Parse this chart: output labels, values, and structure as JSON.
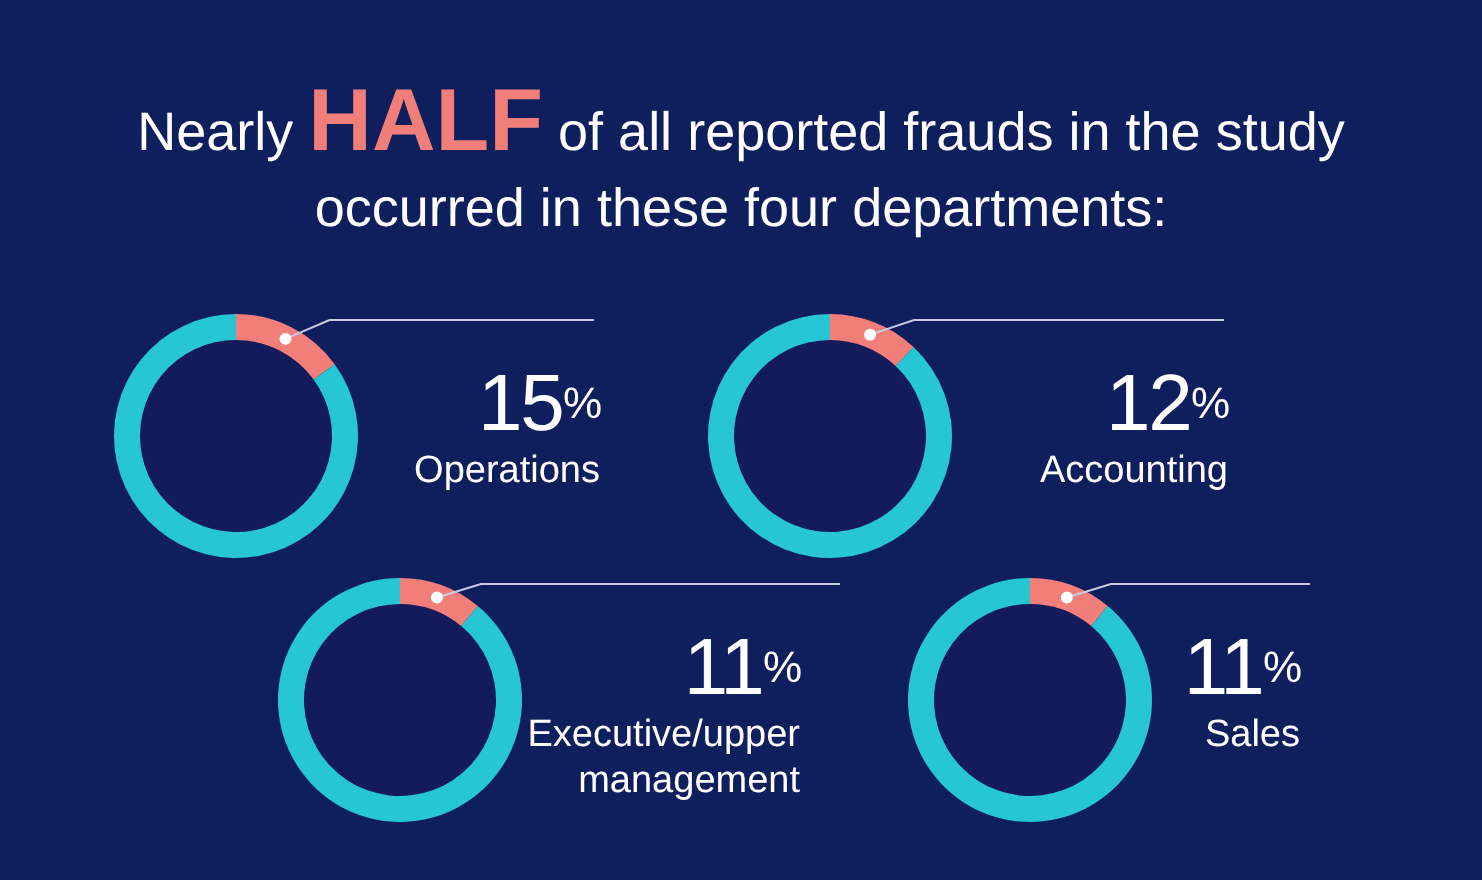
{
  "chart_data": [
    {
      "type": "other",
      "title": "Nearly HALF of all reported frauds in the study occurred in these four departments:"
    },
    {
      "type": "donut",
      "categories": [
        "Operations",
        null
      ],
      "values": [
        15,
        85
      ],
      "colors": [
        "#f27e7a",
        "#26c6d4"
      ],
      "value_labels": [
        "15%",
        null
      ]
    },
    {
      "type": "donut",
      "categories": [
        "Accounting",
        null
      ],
      "values": [
        12,
        88
      ],
      "colors": [
        "#f27e7a",
        "#26c6d4"
      ],
      "value_labels": [
        "12%",
        null
      ]
    },
    {
      "type": "donut",
      "categories": [
        "Executive/upper management",
        null
      ],
      "values": [
        11,
        89
      ],
      "colors": [
        "#f27e7a",
        "#26c6d4"
      ],
      "value_labels": [
        "11%",
        null
      ]
    },
    {
      "type": "donut",
      "categories": [
        "Sales",
        null
      ],
      "values": [
        11,
        89
      ],
      "colors": [
        "#f27e7a",
        "#26c6d4"
      ],
      "value_labels": [
        "11%",
        null
      ]
    }
  ]
}
